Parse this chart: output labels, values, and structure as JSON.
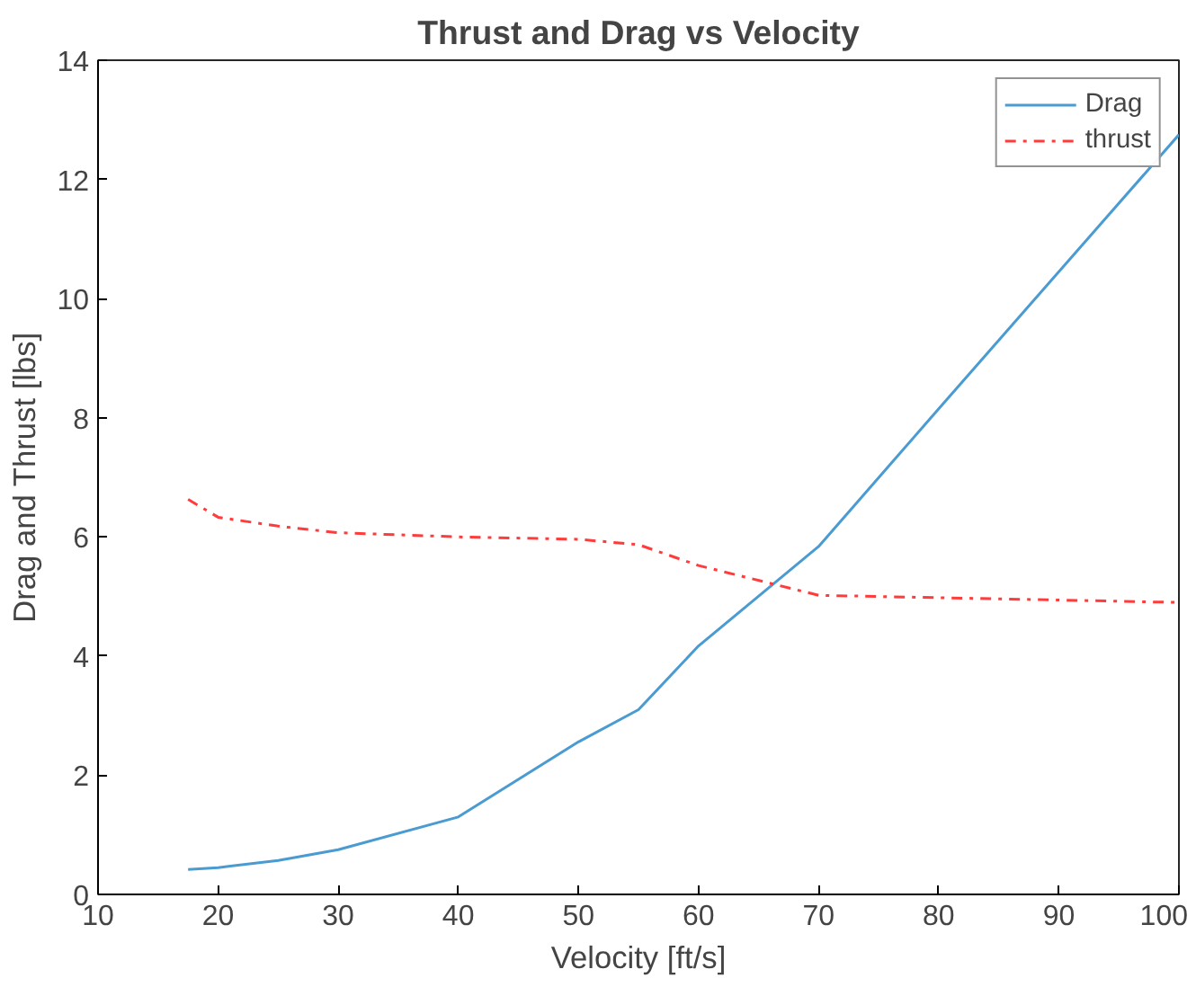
{
  "chart_data": {
    "type": "line",
    "title": "Thrust and Drag vs Velocity",
    "xlabel": "Velocity [ft/s]",
    "ylabel": "Drag and Thrust [lbs]",
    "x": [
      17.5,
      20,
      25,
      30,
      40,
      50,
      55,
      60,
      70,
      80,
      100
    ],
    "series": [
      {
        "name": "Drag",
        "color": "#4a9bd1",
        "line_style": "solid",
        "values": [
          0.42,
          0.45,
          0.57,
          0.75,
          1.3,
          2.56,
          3.1,
          4.17,
          5.84,
          8.15,
          12.75
        ]
      },
      {
        "name": "thrust",
        "color": "#ff3b3b",
        "line_style": "dashed",
        "values": [
          6.63,
          6.33,
          6.18,
          6.07,
          6.0,
          5.96,
          5.87,
          5.52,
          5.02,
          4.98,
          4.9
        ]
      }
    ],
    "xlim": [
      10,
      100
    ],
    "ylim": [
      0,
      14
    ],
    "xticks": [
      10,
      20,
      30,
      40,
      50,
      60,
      70,
      80,
      90,
      100
    ],
    "yticks": [
      0,
      2,
      4,
      6,
      8,
      10,
      12,
      14
    ],
    "grid": false,
    "legend": "top right",
    "marker": "none"
  }
}
